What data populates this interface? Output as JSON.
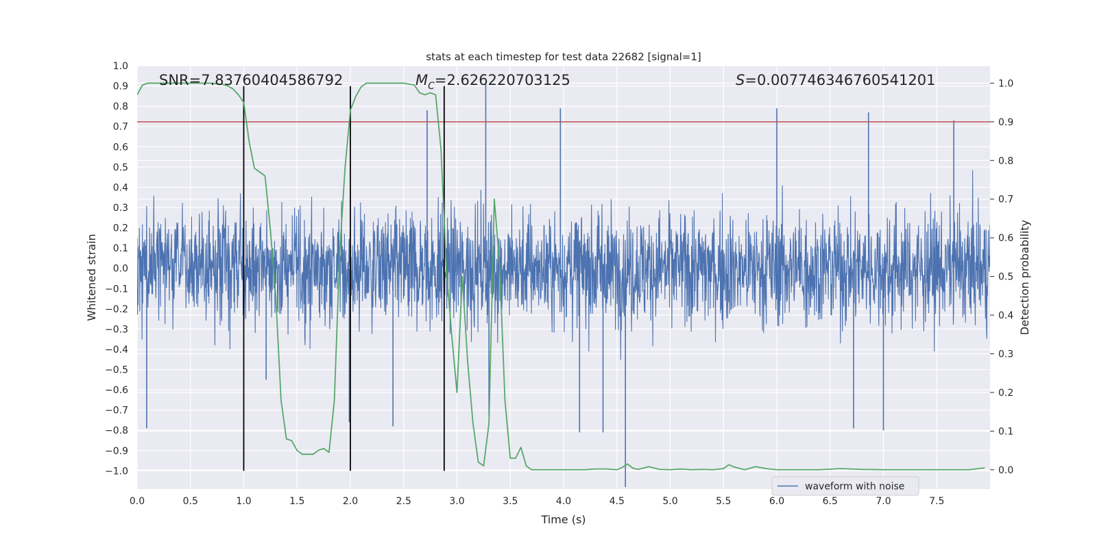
{
  "chart_data": {
    "type": "line",
    "title": "stats at each timestep for test data 22682 [signal=1]",
    "xlabel": "Time (s)",
    "ylabel_left": "Whitened strain",
    "ylabel_right": "Detection probability",
    "xlim": [
      0.0,
      8.0
    ],
    "ylim_left": [
      -1.09,
      1.0
    ],
    "ylim_right": [
      -0.05,
      1.045
    ],
    "x_ticks": [
      "0.0",
      "0.5",
      "1.0",
      "1.5",
      "2.0",
      "2.5",
      "3.0",
      "3.5",
      "4.0",
      "4.5",
      "5.0",
      "5.5",
      "6.0",
      "6.5",
      "7.0",
      "7.5"
    ],
    "y_left_ticks": [
      "1.0",
      "0.9",
      "0.8",
      "0.7",
      "0.6",
      "0.5",
      "0.4",
      "0.3",
      "0.2",
      "0.1",
      "0.0",
      "−0.1",
      "−0.2",
      "−0.3",
      "−0.4",
      "−0.5",
      "−0.6",
      "−0.7",
      "−0.8",
      "−0.9",
      "−1.0"
    ],
    "y_right_ticks": [
      "1.0",
      "0.9",
      "0.8",
      "0.7",
      "0.6",
      "0.5",
      "0.4",
      "0.3",
      "0.2",
      "0.1",
      "0.0"
    ],
    "annotations": {
      "snr": "SNR=7.83760404586792",
      "mc_symbol": "M",
      "mc_subscript": "C",
      "mc_value": "=2.626220703125",
      "s_symbol": "S",
      "s_value": "=0.007746346760541201"
    },
    "threshold": {
      "value": 0.9,
      "axis": "right",
      "color": "#c44e52"
    },
    "vlines": {
      "x": [
        1.0,
        2.0,
        2.88
      ],
      "y_range": [
        -1.0,
        0.9
      ],
      "color": "#000000"
    },
    "series": [
      {
        "name": "waveform with noise",
        "axis": "left",
        "color": "#4c72b0",
        "kind": "dense noise, envelope approx ±0.5",
        "spikes": [
          {
            "x": 0.09,
            "y": -0.79
          },
          {
            "x": 1.21,
            "y": -0.55
          },
          {
            "x": 1.99,
            "y": -0.76
          },
          {
            "x": 2.4,
            "y": -0.78
          },
          {
            "x": 2.72,
            "y": 0.78
          },
          {
            "x": 3.27,
            "y": 0.91
          },
          {
            "x": 3.3,
            "y": -0.73
          },
          {
            "x": 3.97,
            "y": 0.79
          },
          {
            "x": 4.15,
            "y": -0.81
          },
          {
            "x": 4.37,
            "y": -0.81
          },
          {
            "x": 4.58,
            "y": -1.08
          },
          {
            "x": 6.0,
            "y": 0.79
          },
          {
            "x": 6.72,
            "y": -0.79
          },
          {
            "x": 6.86,
            "y": 0.77
          },
          {
            "x": 7.0,
            "y": -0.8
          },
          {
            "x": 7.66,
            "y": 0.73
          }
        ]
      },
      {
        "name": "detection probability",
        "axis": "right",
        "color": "#55a868",
        "x": [
          0.0,
          0.05,
          0.1,
          0.15,
          0.2,
          0.3,
          0.4,
          0.5,
          0.6,
          0.7,
          0.8,
          0.85,
          0.9,
          0.95,
          1.0,
          1.05,
          1.1,
          1.15,
          1.2,
          1.25,
          1.3,
          1.35,
          1.4,
          1.45,
          1.5,
          1.55,
          1.6,
          1.65,
          1.7,
          1.75,
          1.8,
          1.85,
          1.9,
          1.95,
          2.0,
          2.05,
          2.1,
          2.15,
          2.2,
          2.25,
          2.3,
          2.4,
          2.5,
          2.6,
          2.65,
          2.7,
          2.75,
          2.8,
          2.85,
          2.9,
          2.95,
          3.0,
          3.05,
          3.1,
          3.15,
          3.2,
          3.25,
          3.3,
          3.35,
          3.4,
          3.45,
          3.5,
          3.55,
          3.6,
          3.65,
          3.7,
          3.8,
          3.9,
          4.0,
          4.1,
          4.2,
          4.3,
          4.4,
          4.5,
          4.55,
          4.6,
          4.65,
          4.7,
          4.8,
          4.9,
          5.0,
          5.1,
          5.2,
          5.3,
          5.4,
          5.5,
          5.55,
          5.6,
          5.7,
          5.8,
          5.9,
          6.0,
          6.2,
          6.4,
          6.6,
          6.8,
          7.0,
          7.2,
          7.4,
          7.6,
          7.8,
          7.95
        ],
        "y": [
          0.97,
          0.995,
          1.0,
          1.0,
          1.0,
          1.0,
          1.0,
          1.0,
          1.0,
          1.0,
          0.997,
          0.993,
          0.985,
          0.97,
          0.95,
          0.85,
          0.78,
          0.77,
          0.76,
          0.62,
          0.45,
          0.18,
          0.08,
          0.075,
          0.05,
          0.04,
          0.04,
          0.04,
          0.05,
          0.055,
          0.045,
          0.18,
          0.56,
          0.78,
          0.93,
          0.965,
          0.99,
          1.0,
          1.0,
          1.0,
          1.0,
          1.0,
          1.0,
          0.995,
          0.975,
          0.97,
          0.975,
          0.97,
          0.83,
          0.52,
          0.35,
          0.2,
          0.5,
          0.28,
          0.12,
          0.02,
          0.01,
          0.12,
          0.7,
          0.53,
          0.18,
          0.03,
          0.03,
          0.058,
          0.01,
          0.0,
          0.0,
          0.0,
          0.0,
          0.0,
          0.0,
          0.002,
          0.002,
          0.0,
          0.006,
          0.015,
          0.004,
          0.001,
          0.008,
          0.001,
          0.0,
          0.002,
          0.0,
          0.001,
          0.0,
          0.003,
          0.013,
          0.007,
          0.0,
          0.008,
          0.003,
          0.0,
          0.0,
          0.0,
          0.003,
          0.001,
          0.0,
          0.0,
          0.0,
          0.0,
          0.0,
          0.005
        ]
      }
    ],
    "legend": {
      "placement": "lower-right",
      "label": "waveform with noise"
    }
  }
}
